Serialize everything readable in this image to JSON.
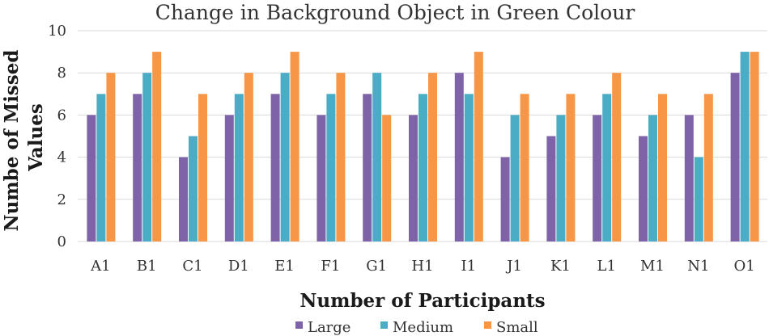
{
  "chart_data": {
    "type": "bar",
    "title": "Change in Background Object in Green Colour",
    "xlabel": "Number of Participants",
    "ylabel_lines": [
      "Numbe of Missed",
      "Values"
    ],
    "ylim": [
      0,
      10
    ],
    "yticks": [
      0,
      2,
      4,
      6,
      8,
      10
    ],
    "grid": true,
    "legend_position": "bottom",
    "categories": [
      "A1",
      "B1",
      "C1",
      "D1",
      "E1",
      "F1",
      "G1",
      "H1",
      "I1",
      "J1",
      "K1",
      "L1",
      "M1",
      "N1",
      "O1"
    ],
    "series": [
      {
        "name": "Large",
        "color": "#7e63a8",
        "values": [
          6,
          7,
          4,
          6,
          7,
          6,
          7,
          6,
          8,
          4,
          5,
          6,
          5,
          6,
          8
        ]
      },
      {
        "name": "Medium",
        "color": "#4bacc6",
        "values": [
          7,
          8,
          5,
          7,
          8,
          7,
          8,
          7,
          7,
          6,
          6,
          7,
          6,
          4,
          9
        ]
      },
      {
        "name": "Small",
        "color": "#f79646",
        "values": [
          8,
          9,
          7,
          8,
          9,
          8,
          6,
          8,
          9,
          7,
          7,
          8,
          7,
          7,
          9
        ]
      }
    ]
  }
}
